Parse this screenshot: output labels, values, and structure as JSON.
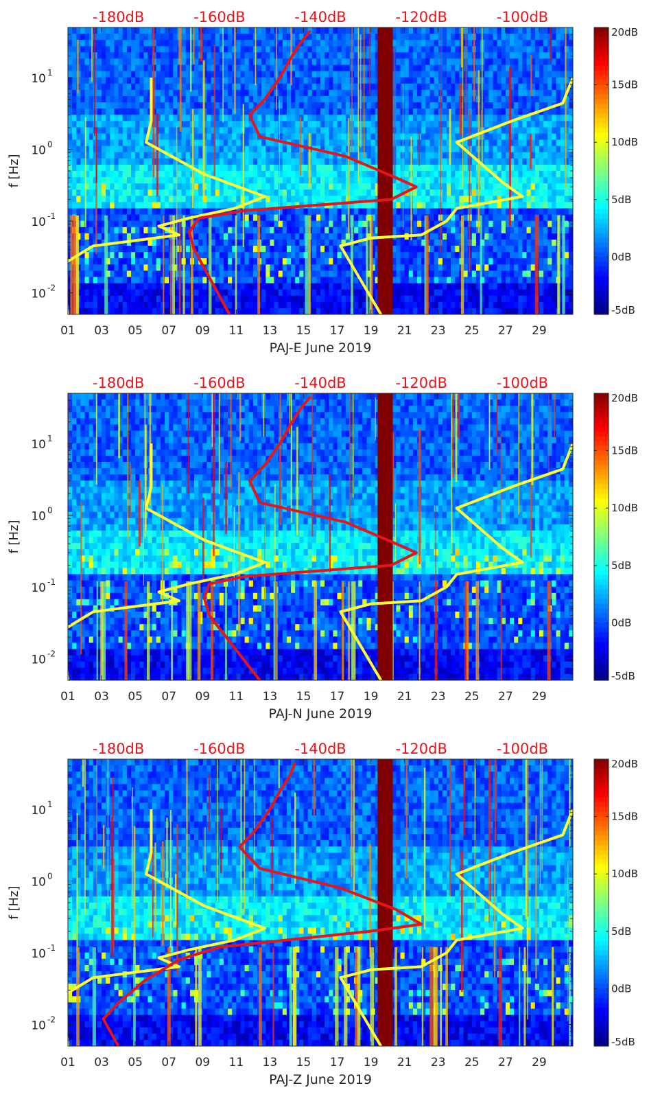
{
  "chart_data": [
    {
      "type": "heatmap",
      "title": "",
      "xlabel": "PAJ-E June 2019",
      "ylabel": "f [Hz]",
      "x_ticks": [
        "01",
        "03",
        "05",
        "07",
        "09",
        "11",
        "13",
        "15",
        "17",
        "19",
        "21",
        "23",
        "25",
        "27",
        "29"
      ],
      "x_range_days": [
        1,
        31
      ],
      "y_scale": "log",
      "y_range_hz": [
        0.005,
        50
      ],
      "y_ticks": [
        {
          "value": 10,
          "label": "10",
          "exp": "1"
        },
        {
          "value": 1,
          "label": "10",
          "exp": "0"
        },
        {
          "value": 0.1,
          "label": "10",
          "exp": "-1"
        },
        {
          "value": 0.01,
          "label": "10",
          "exp": "-2"
        }
      ],
      "colorbar": {
        "range_db": [
          -5,
          20
        ],
        "labels": [
          "20dB",
          "15dB",
          "10dB",
          "5dB",
          "0dB",
          "-5dB"
        ]
      },
      "top_axis_labels": [
        "-180dB",
        "-160dB",
        "-140dB",
        "-120dB",
        "-100dB"
      ],
      "top_axis_range_db": [
        -190,
        -90
      ],
      "gap_days": [
        19.4,
        20.3
      ],
      "series": [
        {
          "name": "noise model low",
          "color": "#ffff33",
          "points_db_hz": [
            [
              -173.5,
              10
            ],
            [
              -173.5,
              2.5
            ],
            [
              -174.5,
              1.25
            ],
            [
              -163,
              0.45
            ],
            [
              -151,
              0.22
            ],
            [
              -157,
              0.15
            ],
            [
              -166,
              0.11
            ],
            [
              -172,
              0.085
            ],
            [
              -168,
              0.064
            ],
            [
              -185,
              0.045
            ],
            [
              -191,
              0.025
            ],
            [
              -190,
              0.005
            ]
          ]
        },
        {
          "name": "noise model high",
          "color": "#ffff33",
          "points_db_hz": [
            [
              -90,
              10
            ],
            [
              -92,
              4.4
            ],
            [
              -102,
              2.5
            ],
            [
              -113,
              1.25
            ],
            [
              -104,
              0.35
            ],
            [
              -100,
              0.22
            ],
            [
              -113,
              0.15
            ],
            [
              -115,
              0.1
            ],
            [
              -120,
              0.064
            ],
            [
              -130,
              0.058
            ],
            [
              -136,
              0.045
            ],
            [
              -128,
              0.005
            ]
          ]
        },
        {
          "name": "median spectrum",
          "color": "#e8141b",
          "points_db_hz": [
            [
              -142,
              45
            ],
            [
              -144,
              30
            ],
            [
              -146,
              18
            ],
            [
              -148,
              10
            ],
            [
              -151,
              5
            ],
            [
              -154,
              3
            ],
            [
              -152,
              1.5
            ],
            [
              -135,
              0.8
            ],
            [
              -125,
              0.4
            ],
            [
              -121,
              0.3
            ],
            [
              -126,
              0.2
            ],
            [
              -155,
              0.14
            ],
            [
              -164,
              0.11
            ],
            [
              -166,
              0.07
            ],
            [
              -165,
              0.04
            ],
            [
              -158,
              0.005
            ]
          ]
        }
      ]
    },
    {
      "type": "heatmap",
      "title": "",
      "xlabel": "PAJ-N June 2019",
      "ylabel": "f [Hz]",
      "x_ticks": [
        "01",
        "03",
        "05",
        "07",
        "09",
        "11",
        "13",
        "15",
        "17",
        "19",
        "21",
        "23",
        "25",
        "27",
        "29"
      ],
      "x_range_days": [
        1,
        31
      ],
      "y_scale": "log",
      "y_range_hz": [
        0.005,
        50
      ],
      "y_ticks": [
        {
          "value": 10,
          "label": "10",
          "exp": "1"
        },
        {
          "value": 1,
          "label": "10",
          "exp": "0"
        },
        {
          "value": 0.1,
          "label": "10",
          "exp": "-1"
        },
        {
          "value": 0.01,
          "label": "10",
          "exp": "-2"
        }
      ],
      "colorbar": {
        "range_db": [
          -5,
          20
        ],
        "labels": [
          "20dB",
          "15dB",
          "10dB",
          "5dB",
          "0dB",
          "-5dB"
        ]
      },
      "top_axis_labels": [
        "-180dB",
        "-160dB",
        "-140dB",
        "-120dB",
        "-100dB"
      ],
      "top_axis_range_db": [
        -190,
        -90
      ],
      "gap_days": [
        19.4,
        20.3
      ],
      "series": [
        {
          "name": "noise model low",
          "color": "#ffff33",
          "points_db_hz": [
            [
              -173.5,
              10
            ],
            [
              -173.5,
              2.5
            ],
            [
              -174.5,
              1.25
            ],
            [
              -163,
              0.45
            ],
            [
              -151,
              0.22
            ],
            [
              -157,
              0.15
            ],
            [
              -166,
              0.11
            ],
            [
              -172,
              0.085
            ],
            [
              -168,
              0.064
            ],
            [
              -185,
              0.045
            ],
            [
              -191,
              0.025
            ],
            [
              -190,
              0.005
            ]
          ]
        },
        {
          "name": "noise model high",
          "color": "#ffff33",
          "points_db_hz": [
            [
              -90,
              10
            ],
            [
              -92,
              4.4
            ],
            [
              -102,
              2.5
            ],
            [
              -113,
              1.25
            ],
            [
              -104,
              0.35
            ],
            [
              -100,
              0.22
            ],
            [
              -113,
              0.15
            ],
            [
              -115,
              0.1
            ],
            [
              -120,
              0.064
            ],
            [
              -130,
              0.058
            ],
            [
              -136,
              0.045
            ],
            [
              -128,
              0.005
            ]
          ]
        },
        {
          "name": "median spectrum",
          "color": "#e8141b",
          "points_db_hz": [
            [
              -142,
              45
            ],
            [
              -144,
              30
            ],
            [
              -146,
              18
            ],
            [
              -148,
              10
            ],
            [
              -151,
              5
            ],
            [
              -154,
              3
            ],
            [
              -152,
              1.5
            ],
            [
              -135,
              0.8
            ],
            [
              -125,
              0.4
            ],
            [
              -121,
              0.3
            ],
            [
              -126,
              0.2
            ],
            [
              -155,
              0.14
            ],
            [
              -162,
              0.11
            ],
            [
              -163,
              0.07
            ],
            [
              -162,
              0.04
            ],
            [
              -152,
              0.005
            ]
          ]
        }
      ]
    },
    {
      "type": "heatmap",
      "title": "",
      "xlabel": "PAJ-Z June 2019",
      "ylabel": "f [Hz]",
      "x_ticks": [
        "01",
        "03",
        "05",
        "07",
        "09",
        "11",
        "13",
        "15",
        "17",
        "19",
        "21",
        "23",
        "25",
        "27",
        "29"
      ],
      "x_range_days": [
        1,
        31
      ],
      "y_scale": "log",
      "y_range_hz": [
        0.005,
        50
      ],
      "y_ticks": [
        {
          "value": 10,
          "label": "10",
          "exp": "1"
        },
        {
          "value": 1,
          "label": "10",
          "exp": "0"
        },
        {
          "value": 0.1,
          "label": "10",
          "exp": "-1"
        },
        {
          "value": 0.01,
          "label": "10",
          "exp": "-2"
        }
      ],
      "colorbar": {
        "range_db": [
          -5,
          20
        ],
        "labels": [
          "20dB",
          "15dB",
          "10dB",
          "5dB",
          "0dB",
          "-5dB"
        ]
      },
      "top_axis_labels": [
        "-180dB",
        "-160dB",
        "-140dB",
        "-120dB",
        "-100dB"
      ],
      "top_axis_range_db": [
        -190,
        -90
      ],
      "gap_days": [
        19.4,
        20.3
      ],
      "series": [
        {
          "name": "noise model low",
          "color": "#ffff33",
          "points_db_hz": [
            [
              -173.5,
              10
            ],
            [
              -173.5,
              2.5
            ],
            [
              -174.5,
              1.25
            ],
            [
              -163,
              0.45
            ],
            [
              -151,
              0.22
            ],
            [
              -157,
              0.15
            ],
            [
              -166,
              0.11
            ],
            [
              -172,
              0.085
            ],
            [
              -168,
              0.064
            ],
            [
              -185,
              0.045
            ],
            [
              -191,
              0.025
            ],
            [
              -190,
              0.005
            ]
          ]
        },
        {
          "name": "noise model high",
          "color": "#ffff33",
          "points_db_hz": [
            [
              -90,
              10
            ],
            [
              -92,
              4.4
            ],
            [
              -102,
              2.5
            ],
            [
              -113,
              1.25
            ],
            [
              -104,
              0.35
            ],
            [
              -100,
              0.22
            ],
            [
              -113,
              0.15
            ],
            [
              -115,
              0.1
            ],
            [
              -120,
              0.064
            ],
            [
              -130,
              0.058
            ],
            [
              -136,
              0.045
            ],
            [
              -128,
              0.005
            ]
          ]
        },
        {
          "name": "median spectrum",
          "color": "#e8141b",
          "points_db_hz": [
            [
              -145,
              45
            ],
            [
              -146,
              30
            ],
            [
              -148,
              18
            ],
            [
              -150,
              10
            ],
            [
              -153,
              5
            ],
            [
              -156,
              3
            ],
            [
              -152,
              1.5
            ],
            [
              -136,
              0.8
            ],
            [
              -125,
              0.4
            ],
            [
              -120,
              0.25
            ],
            [
              -130,
              0.2
            ],
            [
              -160,
              0.12
            ],
            [
              -168,
              0.08
            ],
            [
              -175,
              0.04
            ],
            [
              -180,
              0.02
            ],
            [
              -183,
              0.012
            ],
            [
              -180,
              0.005
            ]
          ]
        }
      ]
    }
  ]
}
